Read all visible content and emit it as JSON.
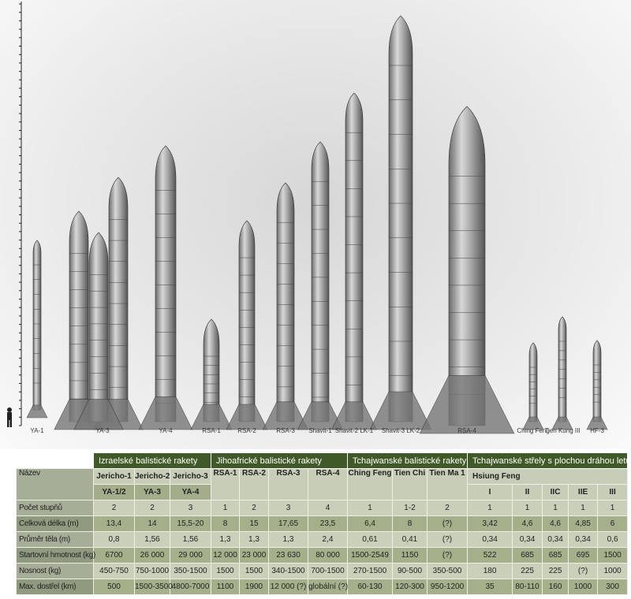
{
  "rocket_labels": [
    "YA-1",
    "YA-3",
    "YA-4",
    "RSA-1",
    "RSA-2",
    "RSA-3",
    "Shavit-1",
    "Shavit-2 LK-1",
    "Shavit-3 LK-2",
    "RSA-4",
    "Ching Feng",
    "Tien Kung III",
    "HF-3"
  ],
  "table": {
    "groups": [
      "Izraelské balistické rakety",
      "Jihoafrické balistické rakety",
      "Tchajwanské balistické rakety",
      "Tchajwanské střely s plochou dráhou letu"
    ],
    "name_label": "Název",
    "names": [
      "Jericho-1",
      "Jericho-2",
      "Jericho-3",
      "RSA-1",
      "RSA-2",
      "RSA-3",
      "RSA-4",
      "Ching Feng",
      "Tien Chi",
      "Tien Ma 1",
      "Hsiung Feng"
    ],
    "aliases": [
      "YA-1/2",
      "YA-3",
      "YA-4"
    ],
    "hf_variants": [
      "I",
      "II",
      "IIC",
      "IIE",
      "III"
    ],
    "rows": [
      {
        "label": "Počet stupňů",
        "values": [
          "2",
          "2",
          "3",
          "1",
          "2",
          "3",
          "4",
          "1",
          "1-2",
          "2",
          "1",
          "1",
          "1",
          "1",
          "1"
        ]
      },
      {
        "label": "Celková délka (m)",
        "values": [
          "13,4",
          "14",
          "15,5-20",
          "8",
          "15",
          "17,65",
          "23,5",
          "6,4",
          "8",
          "(?)",
          "3,42",
          "4,6",
          "4,6",
          "4,85",
          "6"
        ]
      },
      {
        "label": "Průměr těla (m)",
        "values": [
          "0,8",
          "1,56",
          "1,56",
          "1,3",
          "1,3",
          "1,3",
          "2,4",
          "0,61",
          "0,41",
          "(?)",
          "0,34",
          "0,34",
          "0,34",
          "0,34",
          "0,6"
        ]
      },
      {
        "label": "Startovní hmotnost (kg)",
        "values": [
          "6700",
          "26 000",
          "29 000",
          "12 000",
          "23 000",
          "23 630",
          "80 000",
          "1500-2549",
          "1150",
          "(?)",
          "522",
          "685",
          "685",
          "695",
          "1500"
        ]
      },
      {
        "label": "Nosnost (kg)",
        "values": [
          "450-750",
          "750-1000",
          "350-1500",
          "1500",
          "1500",
          "340-1500",
          "700-1500",
          "270-1500",
          "90-500",
          "350-500",
          "180",
          "225",
          "225",
          "(?)",
          "1000"
        ]
      },
      {
        "label": "Max. dostřel (km)",
        "values": [
          "500",
          "1500-3500",
          "4800-7000",
          "1100",
          "1900",
          "12 000 (?)",
          "globální (?)",
          "60-130",
          "120-300",
          "950-1200",
          "35",
          "80-110",
          "160",
          "1000",
          "300"
        ]
      }
    ]
  },
  "colors": {
    "header": "#3f5a27",
    "cell_light": "#c9cfb9",
    "cell_dark": "#a5b08b"
  }
}
